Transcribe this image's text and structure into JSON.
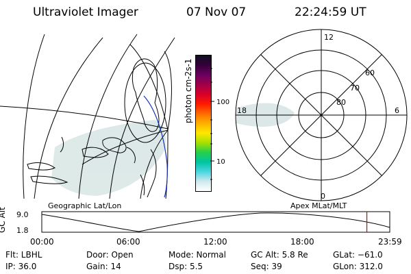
{
  "header": {
    "instrument": "Ultraviolet Imager",
    "date": "07 Nov 07",
    "time": "22:24:59 UT"
  },
  "colorbar": {
    "label": "photon cm-2s-1",
    "ticks": [
      "100",
      "10"
    ],
    "colors": [
      "#ffffff",
      "#cfe9ee",
      "#49d6e2",
      "#00c4a0",
      "#24d04a",
      "#a8e000",
      "#ffe800",
      "#ffb000",
      "#ff6a00",
      "#ff1a00",
      "#d8002a",
      "#a0004a",
      "#6a0060",
      "#35003a",
      "#101020"
    ]
  },
  "polar": {
    "mlt_labels": [
      "12",
      "18",
      "6",
      "0"
    ],
    "lat_labels": [
      "60",
      "70",
      "80"
    ]
  },
  "projection_labels": {
    "left": "Geographic Lat/Lon",
    "right": "Apex MLat/MLT"
  },
  "orbit_plot": {
    "axis_label": "GC Alt",
    "y_ticks": [
      "9.0",
      "1.8"
    ],
    "x_ticks": [
      "00:00",
      "06:00",
      "12:00",
      "18:00",
      "23:59"
    ],
    "marker_hour": 22.42,
    "marker_color": "#d00000"
  },
  "info": {
    "flt": "Flt: LBHL",
    "ip": "IP: 36.0",
    "door": "Door: Open",
    "gain": "Gain: 14",
    "mode": "Mode: Normal",
    "dsp": "Dsp:    5.5",
    "gc_alt": "GC Alt: 5.8 Re",
    "seq": "Seq: 39",
    "glat": "GLat: −61.0",
    "glon": "GLon: 312.0"
  }
}
